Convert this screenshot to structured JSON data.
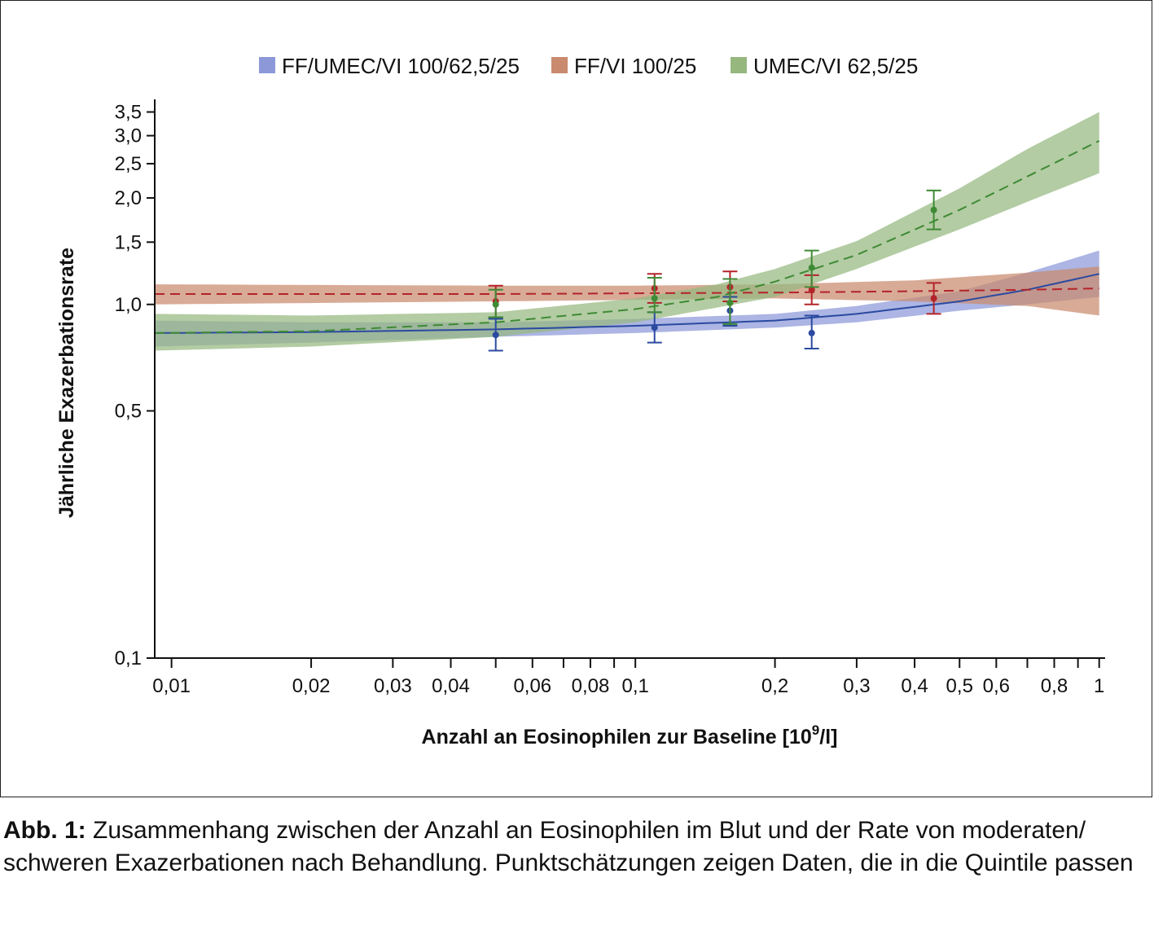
{
  "chart_data": {
    "type": "line",
    "scale": {
      "x": "log",
      "y": "log"
    },
    "xlabel": "Anzahl an Eosinophilen zur Baseline [10",
    "xlabel_sup": "9",
    "xlabel_suffix": "/l]",
    "ylabel": "Jährliche Exazerbationsrate",
    "xlim": [
      0.0092,
      1.03
    ],
    "ylim": [
      0.1,
      3.8
    ],
    "x_ticks": [
      {
        "v": 0.01,
        "label": "0,01"
      },
      {
        "v": 0.02,
        "label": "0,02"
      },
      {
        "v": 0.03,
        "label": "0,03"
      },
      {
        "v": 0.04,
        "label": "0,04"
      },
      {
        "v": 0.05,
        "label": ""
      },
      {
        "v": 0.06,
        "label": "0,06"
      },
      {
        "v": 0.07,
        "label": ""
      },
      {
        "v": 0.08,
        "label": "0,08"
      },
      {
        "v": 0.09,
        "label": ""
      },
      {
        "v": 0.1,
        "label": "0,1"
      },
      {
        "v": 0.2,
        "label": "0,2"
      },
      {
        "v": 0.3,
        "label": "0,3"
      },
      {
        "v": 0.4,
        "label": "0,4"
      },
      {
        "v": 0.5,
        "label": "0,5"
      },
      {
        "v": 0.6,
        "label": "0,6"
      },
      {
        "v": 0.7,
        "label": ""
      },
      {
        "v": 0.8,
        "label": "0,8"
      },
      {
        "v": 0.9,
        "label": ""
      },
      {
        "v": 1.0,
        "label": "1"
      }
    ],
    "y_ticks": [
      {
        "v": 0.1,
        "label": "0,1"
      },
      {
        "v": 0.5,
        "label": "0,5"
      },
      {
        "v": 1.0,
        "label": "1,0"
      },
      {
        "v": 1.5,
        "label": "1,5"
      },
      {
        "v": 2.0,
        "label": "2,0"
      },
      {
        "v": 2.5,
        "label": "2,5"
      },
      {
        "v": 3.0,
        "label": "3,0"
      },
      {
        "v": 3.5,
        "label": "3,5"
      }
    ],
    "legend_position": "top",
    "series": [
      {
        "name": "FF/UMEC/VI 100/62,5/25",
        "line_color": "#2b4aa0",
        "band_color": "#8c98d8",
        "line_style": "solid",
        "curve": [
          {
            "x": 0.0092,
            "y": 0.83,
            "lo": 0.76,
            "hi": 0.9
          },
          {
            "x": 0.02,
            "y": 0.835,
            "lo": 0.78,
            "hi": 0.89
          },
          {
            "x": 0.05,
            "y": 0.85,
            "lo": 0.81,
            "hi": 0.89
          },
          {
            "x": 0.1,
            "y": 0.87,
            "lo": 0.83,
            "hi": 0.91
          },
          {
            "x": 0.2,
            "y": 0.9,
            "lo": 0.86,
            "hi": 0.94
          },
          {
            "x": 0.3,
            "y": 0.94,
            "lo": 0.89,
            "hi": 0.99
          },
          {
            "x": 0.5,
            "y": 1.02,
            "lo": 0.96,
            "hi": 1.09
          },
          {
            "x": 0.7,
            "y": 1.1,
            "lo": 1.0,
            "hi": 1.23
          },
          {
            "x": 1.0,
            "y": 1.22,
            "lo": 1.05,
            "hi": 1.42
          }
        ],
        "points": [
          {
            "x": 0.05,
            "y": 0.82,
            "lo": 0.74,
            "hi": 0.91
          },
          {
            "x": 0.11,
            "y": 0.86,
            "lo": 0.78,
            "hi": 0.95
          },
          {
            "x": 0.16,
            "y": 0.96,
            "lo": 0.87,
            "hi": 1.05
          },
          {
            "x": 0.24,
            "y": 0.83,
            "lo": 0.75,
            "hi": 0.93
          }
        ]
      },
      {
        "name": "FF/VI 100/25",
        "line_color": "#b3242a",
        "band_color": "#c98a6e",
        "line_style": "dashed",
        "curve": [
          {
            "x": 0.0092,
            "y": 1.07,
            "lo": 1.0,
            "hi": 1.14
          },
          {
            "x": 0.05,
            "y": 1.07,
            "lo": 1.02,
            "hi": 1.13
          },
          {
            "x": 0.1,
            "y": 1.075,
            "lo": 1.03,
            "hi": 1.13
          },
          {
            "x": 0.2,
            "y": 1.08,
            "lo": 1.04,
            "hi": 1.14
          },
          {
            "x": 0.4,
            "y": 1.09,
            "lo": 1.02,
            "hi": 1.17
          },
          {
            "x": 0.7,
            "y": 1.1,
            "lo": 0.99,
            "hi": 1.23
          },
          {
            "x": 1.0,
            "y": 1.11,
            "lo": 0.93,
            "hi": 1.28
          }
        ],
        "points": [
          {
            "x": 0.05,
            "y": 1.02,
            "lo": 0.92,
            "hi": 1.13
          },
          {
            "x": 0.11,
            "y": 1.11,
            "lo": 1.01,
            "hi": 1.22
          },
          {
            "x": 0.16,
            "y": 1.12,
            "lo": 1.02,
            "hi": 1.24
          },
          {
            "x": 0.24,
            "y": 1.1,
            "lo": 1.0,
            "hi": 1.21
          },
          {
            "x": 0.44,
            "y": 1.04,
            "lo": 0.94,
            "hi": 1.15
          }
        ]
      },
      {
        "name": "UMEC/VI 62,5/25",
        "line_color": "#3f8a35",
        "band_color": "#96b87f",
        "line_style": "dashed",
        "curve": [
          {
            "x": 0.0092,
            "y": 0.83,
            "lo": 0.74,
            "hi": 0.94
          },
          {
            "x": 0.02,
            "y": 0.84,
            "lo": 0.76,
            "hi": 0.93
          },
          {
            "x": 0.05,
            "y": 0.89,
            "lo": 0.81,
            "hi": 0.95
          },
          {
            "x": 0.1,
            "y": 0.97,
            "lo": 0.89,
            "hi": 1.04
          },
          {
            "x": 0.15,
            "y": 1.05,
            "lo": 0.98,
            "hi": 1.14
          },
          {
            "x": 0.2,
            "y": 1.16,
            "lo": 1.05,
            "hi": 1.26
          },
          {
            "x": 0.3,
            "y": 1.38,
            "lo": 1.26,
            "hi": 1.51
          },
          {
            "x": 0.5,
            "y": 1.85,
            "lo": 1.63,
            "hi": 2.13
          },
          {
            "x": 0.7,
            "y": 2.3,
            "lo": 1.95,
            "hi": 2.75
          },
          {
            "x": 1.0,
            "y": 2.9,
            "lo": 2.35,
            "hi": 3.5
          }
        ],
        "points": [
          {
            "x": 0.05,
            "y": 1.0,
            "lo": 0.92,
            "hi": 1.1
          },
          {
            "x": 0.11,
            "y": 1.04,
            "lo": 0.95,
            "hi": 1.19
          },
          {
            "x": 0.16,
            "y": 1.01,
            "lo": 0.88,
            "hi": 1.18
          },
          {
            "x": 0.24,
            "y": 1.27,
            "lo": 1.12,
            "hi": 1.42
          },
          {
            "x": 0.44,
            "y": 1.85,
            "lo": 1.63,
            "hi": 2.1
          }
        ]
      }
    ]
  },
  "caption": {
    "bold": "Abb. 1:",
    "text": " Zusammenhang zwischen der Anzahl an Eosinophilen im Blut und der Rate von moderaten/ schweren Exazerbationen nach Behandlung. Punktschätzungen zeigen Daten, die in die Quintile passen"
  }
}
